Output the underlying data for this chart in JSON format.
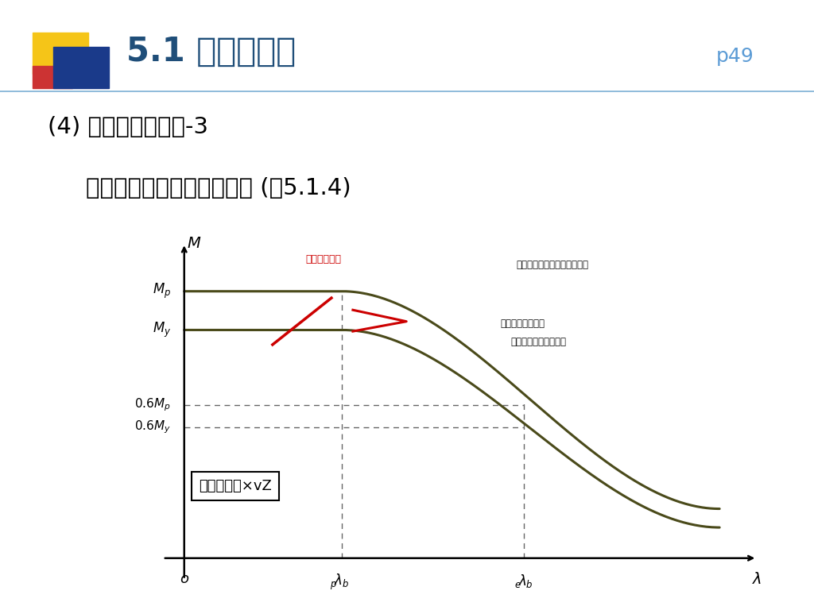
{
  "bg_color": "#ffffff",
  "title_text": "5.1 構造用鉰材",
  "title_color": "#1f4e79",
  "page_ref": "p49",
  "page_ref_color": "#5b9bd5",
  "subtitle1": "(4) 許容曲げ応力度-3",
  "subtitle2": "・横座屈限界耕力との関係 (嘷5.1.4)",
  "subtitle_color": "#000000",
  "header_line_color": "#7bafd4",
  "curve_color": "#4a4a1a",
  "red_line_color": "#cc0000",
  "dashed_color": "#666666",
  "annotation1": "終局限界設計",
  "annotation1_color": "#cc0000",
  "annotation2": "使用限界設計横座屈限界耕力",
  "annotation3_line1": "許容応力度設計に",
  "annotation3_line2": "対応させた横座屈耕力",
  "annotation_color": "#111111",
  "box_label": "許容応力度×vZ",
  "dec_yellow": "#f5c518",
  "dec_blue": "#1a3a8a",
  "dec_red": "#cc3333"
}
